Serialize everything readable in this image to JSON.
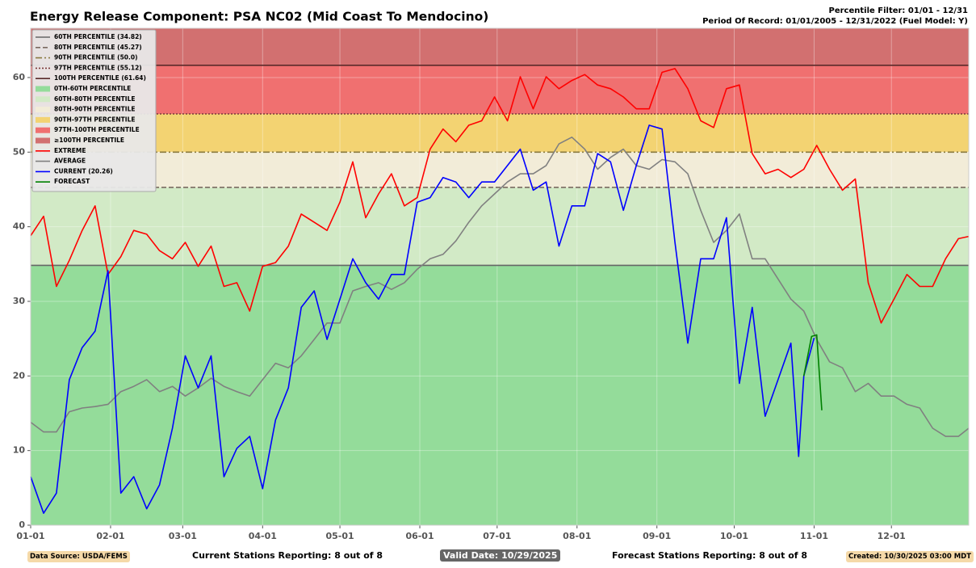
{
  "chart_data": {
    "type": "line",
    "title": "Energy Release Component: PSA NC02 (Mid Coast To Mendocino)",
    "subtitle_lines": [
      "Percentile Filter: 01/01 - 12/31",
      "Period Of Record: 01/01/2005 - 12/31/2022 (Fuel Model: Y)"
    ],
    "xlim": [
      0,
      364
    ],
    "xticks": [
      {
        "value": 0,
        "label": "01-01"
      },
      {
        "value": 31,
        "label": "02-01"
      },
      {
        "value": 59,
        "label": "03-01"
      },
      {
        "value": 90,
        "label": "04-01"
      },
      {
        "value": 120,
        "label": "05-01"
      },
      {
        "value": 151,
        "label": "06-01"
      },
      {
        "value": 181,
        "label": "07-01"
      },
      {
        "value": 212,
        "label": "08-01"
      },
      {
        "value": 243,
        "label": "09-01"
      },
      {
        "value": 273,
        "label": "10-01"
      },
      {
        "value": 304,
        "label": "11-01"
      },
      {
        "value": 334,
        "label": "12-01"
      }
    ],
    "ylim": [
      0,
      66.6
    ],
    "yticks": [
      0,
      10,
      20,
      30,
      40,
      50,
      60
    ],
    "grid": true,
    "legend": "upper-left",
    "percentile_lines": [
      {
        "name": "60TH PERCENTILE (34.82)",
        "value": 34.82,
        "color": "#666666",
        "style": "solid"
      },
      {
        "name": "80TH PERCENTILE (45.27)",
        "value": 45.27,
        "color": "#7a6a60",
        "style": "dashed"
      },
      {
        "name": "90TH PERCENTILE (50.0)",
        "value": 50.0,
        "color": "#8a7a40",
        "style": "dashdot"
      },
      {
        "name": "97TH PERCENTILE (55.12)",
        "value": 55.12,
        "color": "#7a3a3a",
        "style": "dotted"
      },
      {
        "name": "100TH PERCENTILE (61.64)",
        "value": 61.64,
        "color": "#5a2a2a",
        "style": "solid"
      }
    ],
    "bands": [
      {
        "name": "0TH-60TH PERCENTILE",
        "color": "#94dc9a"
      },
      {
        "name": "60TH-80TH PERCENTILE",
        "color": "#d2eac6"
      },
      {
        "name": "80TH-90TH PERCENTILE",
        "color": "#f2ecd8"
      },
      {
        "name": "90TH-97TH PERCENTILE",
        "color": "#f3d372"
      },
      {
        "name": "97TH-100TH PERCENTILE",
        "color": "#f07070"
      },
      {
        "name": "≥100TH PERCENTILE",
        "color": "#d27070"
      }
    ],
    "series": [
      {
        "name": "EXTREME",
        "color": "#ff0000",
        "x": [
          0,
          5,
          10,
          15,
          20,
          25,
          30,
          35,
          40,
          45,
          50,
          55,
          60,
          65,
          70,
          75,
          80,
          85,
          90,
          95,
          100,
          105,
          110,
          115,
          120,
          125,
          130,
          135,
          140,
          145,
          150,
          155,
          160,
          165,
          170,
          175,
          180,
          185,
          190,
          195,
          200,
          205,
          210,
          215,
          220,
          225,
          230,
          235,
          240,
          245,
          250,
          255,
          260,
          265,
          270,
          275,
          280,
          285,
          290,
          295,
          300,
          305,
          310,
          315,
          320,
          325,
          330,
          335,
          340,
          345,
          350,
          355,
          360,
          364
        ],
        "values": [
          38.8,
          41.4,
          32,
          35.5,
          39.5,
          42.8,
          33.6,
          36,
          39.5,
          39,
          36.8,
          35.7,
          37.9,
          34.7,
          37.4,
          32,
          32.5,
          28.7,
          34.7,
          35.2,
          37.4,
          41.7,
          40.6,
          39.5,
          43.3,
          48.7,
          41.2,
          44.4,
          47.1,
          42.8,
          43.9,
          50.4,
          53.1,
          51.4,
          53.6,
          54.2,
          57.4,
          54.2,
          60.1,
          55.8,
          60.1,
          58.5,
          59.6,
          60.4,
          59,
          58.5,
          57.4,
          55.8,
          55.8,
          60.7,
          61.2,
          58.5,
          54.2,
          53.3,
          58.5,
          59,
          49.8,
          47.1,
          47.7,
          46.6,
          47.7,
          50.9,
          47.7,
          44.9,
          46.4,
          32.5,
          27.1,
          30.3,
          33.6,
          32,
          32,
          35.7,
          38.4,
          38.7
        ]
      },
      {
        "name": "AVERAGE",
        "color": "#808080",
        "x": [
          0,
          5,
          10,
          15,
          20,
          25,
          30,
          35,
          40,
          45,
          50,
          55,
          60,
          65,
          70,
          75,
          80,
          85,
          90,
          95,
          100,
          105,
          110,
          115,
          120,
          125,
          130,
          135,
          140,
          145,
          150,
          155,
          160,
          165,
          170,
          175,
          180,
          185,
          190,
          195,
          200,
          205,
          210,
          215,
          220,
          225,
          230,
          235,
          240,
          245,
          250,
          255,
          260,
          265,
          270,
          275,
          280,
          285,
          290,
          295,
          300,
          305,
          310,
          315,
          320,
          325,
          330,
          335,
          340,
          345,
          350,
          355,
          360,
          364
        ],
        "values": [
          13.8,
          12.5,
          12.5,
          15.2,
          15.7,
          15.9,
          16.2,
          17.9,
          18.6,
          19.5,
          17.9,
          18.6,
          17.3,
          18.4,
          19.7,
          18.6,
          17.9,
          17.3,
          19.5,
          21.7,
          21.1,
          22.7,
          24.9,
          27.1,
          27.1,
          31.4,
          32,
          32.5,
          31.6,
          32.5,
          34.3,
          35.7,
          36.3,
          38.1,
          40.6,
          42.8,
          44.4,
          46,
          47.1,
          47.1,
          48.2,
          51.1,
          52,
          50.4,
          47.7,
          49.3,
          50.4,
          48.2,
          47.7,
          49,
          48.7,
          47.1,
          42.2,
          37.9,
          39.5,
          41.7,
          35.7,
          35.7,
          33,
          30.3,
          28.7,
          24.9,
          21.9,
          21.1,
          17.9,
          19,
          17.3,
          17.3,
          16.2,
          15.7,
          13,
          11.9,
          11.9,
          13
        ]
      },
      {
        "name": "CURRENT (20.26)",
        "color": "#0000ff",
        "x": [
          0,
          5,
          10,
          15,
          20,
          25,
          30,
          35,
          40,
          45,
          50,
          55,
          60,
          65,
          70,
          75,
          80,
          85,
          90,
          95,
          100,
          105,
          110,
          115,
          120,
          125,
          130,
          135,
          140,
          145,
          150,
          155,
          160,
          165,
          170,
          175,
          180,
          185,
          190,
          195,
          200,
          205,
          210,
          215,
          220,
          225,
          230,
          235,
          240,
          245,
          250,
          255,
          260,
          265,
          270,
          275,
          280,
          285,
          290,
          295,
          298,
          300,
          304
        ],
        "values": [
          6.5,
          1.6,
          4.3,
          19.5,
          23.8,
          26,
          34.1,
          4.3,
          6.5,
          2.2,
          5.4,
          13,
          22.7,
          18.4,
          22.7,
          6.5,
          10.3,
          11.9,
          4.9,
          14.1,
          18.4,
          29.2,
          31.4,
          24.9,
          30.3,
          35.7,
          32.5,
          30.3,
          33.6,
          33.6,
          43.3,
          43.9,
          46.6,
          46,
          43.9,
          46,
          46,
          48.2,
          50.4,
          44.9,
          46,
          37.4,
          42.8,
          42.8,
          49.8,
          48.7,
          42.2,
          48.2,
          53.6,
          53.1,
          37.9,
          24.4,
          35.7,
          35.7,
          41.2,
          19,
          29.2,
          14.6,
          19.5,
          24.4,
          9.2,
          20,
          25.1
        ]
      },
      {
        "name": "FORECAST",
        "color": "#008000",
        "x": [
          300,
          303,
          305,
          307
        ],
        "values": [
          20,
          25.3,
          25.5,
          15.4
        ]
      }
    ],
    "footer": {
      "data_source": "Data Source: USDA/FEMS",
      "current_stations": "Current Stations Reporting: 8 out of 8",
      "valid_date": "Valid Date: 10/29/2025",
      "forecast_stations": "Forecast Stations Reporting: 8 out of 8",
      "created": "Created: 10/30/2025 03:00 MDT"
    }
  }
}
